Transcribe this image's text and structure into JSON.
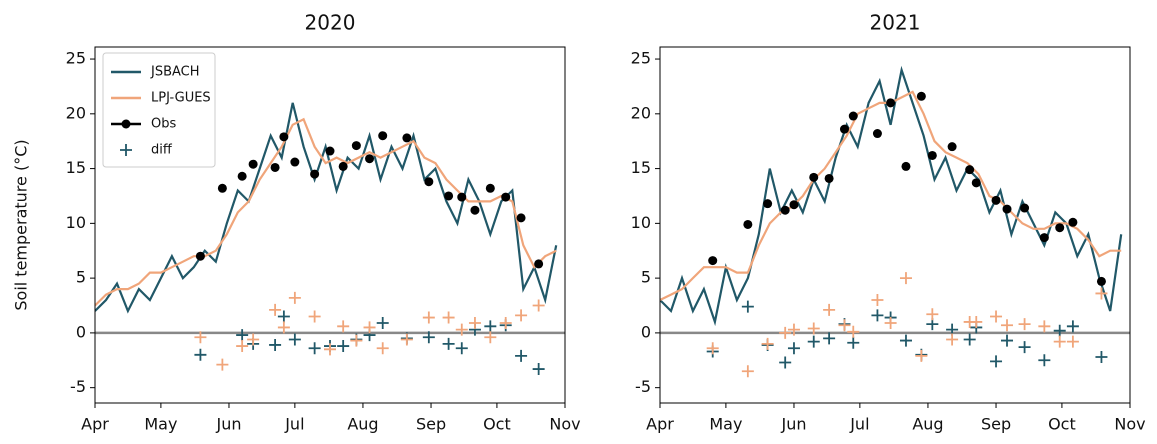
{
  "chart_data": [
    {
      "type": "line",
      "title": "2020",
      "ylabel": "Soil temperature (°C)",
      "xlim": [
        0,
        214
      ],
      "xticks": [
        {
          "value": 0,
          "label": "Apr"
        },
        {
          "value": 30,
          "label": "May"
        },
        {
          "value": 61,
          "label": "Jun"
        },
        {
          "value": 91,
          "label": "Jul"
        },
        {
          "value": 122,
          "label": "Aug"
        },
        {
          "value": 153,
          "label": "Sep"
        },
        {
          "value": 183,
          "label": "Oct"
        },
        {
          "value": 214,
          "label": "Nov"
        }
      ],
      "ylim": [
        -6.4,
        26.1
      ],
      "yticks": [
        -5,
        0,
        5,
        10,
        15,
        20,
        25
      ],
      "hline": 0,
      "hline_color": "#888888",
      "legend": "upper left",
      "series": [
        {
          "name": "JSBACH",
          "color": "#215868",
          "marker": "line",
          "x": [
            0,
            5,
            10,
            15,
            20,
            25,
            30,
            35,
            40,
            45,
            50,
            55,
            60,
            65,
            70,
            75,
            80,
            85,
            90,
            95,
            100,
            105,
            110,
            115,
            120,
            125,
            130,
            135,
            140,
            145,
            150,
            155,
            160,
            165,
            170,
            175,
            180,
            185,
            190,
            195,
            200,
            205,
            210
          ],
          "values": [
            2,
            3,
            4.5,
            2,
            4,
            3,
            5,
            7,
            5,
            6,
            7.5,
            6.5,
            10,
            13,
            12,
            15,
            18,
            16,
            21,
            17,
            14,
            17,
            13,
            16,
            15,
            18,
            14,
            17,
            15,
            18,
            14,
            15,
            12,
            10,
            14,
            12,
            9,
            12,
            13,
            4,
            6,
            3,
            8
          ]
        },
        {
          "name": "LPJ-GUES",
          "color": "#f0a57a",
          "marker": "line",
          "x": [
            0,
            5,
            10,
            15,
            20,
            25,
            30,
            35,
            40,
            45,
            50,
            55,
            60,
            65,
            70,
            75,
            80,
            85,
            90,
            95,
            100,
            105,
            110,
            115,
            120,
            125,
            130,
            135,
            140,
            145,
            150,
            155,
            160,
            165,
            170,
            175,
            180,
            185,
            190,
            195,
            200,
            205,
            210
          ],
          "values": [
            2.5,
            3.5,
            4,
            4,
            4.5,
            5.5,
            5.5,
            6,
            6.5,
            7,
            7,
            7.5,
            9,
            11,
            12,
            14,
            15.5,
            17,
            19,
            19.5,
            17,
            15.5,
            16,
            15.5,
            16,
            16.5,
            16,
            16.5,
            17,
            17.5,
            16,
            15.5,
            14,
            13,
            12,
            12,
            12,
            12.5,
            12,
            8,
            6,
            7,
            7.5
          ]
        },
        {
          "name": "Obs",
          "color": "#000000",
          "marker": "dot",
          "x": [
            48,
            58,
            67,
            72,
            82,
            86,
            91,
            100,
            107,
            113,
            119,
            125,
            131,
            142,
            152,
            161,
            167,
            173,
            180,
            187,
            194,
            202
          ],
          "values": [
            7.0,
            13.2,
            14.3,
            15.4,
            15.1,
            17.9,
            15.6,
            14.5,
            16.6,
            15.2,
            17.1,
            15.9,
            18.0,
            17.8,
            13.8,
            12.5,
            12.4,
            11.2,
            13.2,
            12.4,
            10.5,
            6.3
          ]
        },
        {
          "name": "diff",
          "color": "#215868",
          "marker": "plus",
          "x": [
            48,
            67,
            72,
            82,
            86,
            91,
            100,
            107,
            113,
            119,
            125,
            131,
            142,
            152,
            161,
            167,
            173,
            180,
            187,
            194,
            202
          ],
          "values": [
            -2,
            -0.2,
            -1,
            -1.1,
            1.5,
            -0.6,
            -1.4,
            -1.2,
            -1.2,
            -0.6,
            -0.2,
            0.9,
            -0.5,
            -0.4,
            -1,
            -1.4,
            0.3,
            0.6,
            0.7,
            -2.1,
            -3.3
          ]
        },
        {
          "color": "#f0a57a",
          "marker": "plus",
          "x": [
            48,
            58,
            67,
            72,
            82,
            86,
            91,
            100,
            107,
            113,
            119,
            125,
            131,
            142,
            152,
            161,
            167,
            173,
            180,
            187,
            194,
            202
          ],
          "values": [
            -0.4,
            -2.9,
            -1.2,
            -0.6,
            2.1,
            0.5,
            3.2,
            1.5,
            -1.5,
            0.6,
            -0.7,
            0.5,
            -1.4,
            -0.6,
            1.4,
            1.4,
            0.3,
            0.9,
            -0.4,
            0.9,
            1.6,
            2.5
          ]
        }
      ]
    },
    {
      "type": "line",
      "title": "2021",
      "xlim": [
        0,
        214
      ],
      "xticks": [
        {
          "value": 0,
          "label": "Apr"
        },
        {
          "value": 30,
          "label": "May"
        },
        {
          "value": 61,
          "label": "Jun"
        },
        {
          "value": 91,
          "label": "Jul"
        },
        {
          "value": 122,
          "label": "Aug"
        },
        {
          "value": 153,
          "label": "Sep"
        },
        {
          "value": 183,
          "label": "Oct"
        },
        {
          "value": 214,
          "label": "Nov"
        }
      ],
      "ylim": [
        -6.4,
        26.1
      ],
      "yticks": [
        -5,
        0,
        5,
        10,
        15,
        20,
        25
      ],
      "hline": 0,
      "hline_color": "#888888",
      "series": [
        {
          "name": "JSBACH",
          "color": "#215868",
          "marker": "line",
          "x": [
            0,
            5,
            10,
            15,
            20,
            25,
            30,
            35,
            40,
            45,
            50,
            55,
            60,
            65,
            70,
            75,
            80,
            85,
            90,
            95,
            100,
            105,
            110,
            115,
            120,
            125,
            130,
            135,
            140,
            145,
            150,
            155,
            160,
            165,
            170,
            175,
            180,
            185,
            190,
            195,
            200,
            205,
            210
          ],
          "values": [
            3,
            2,
            5,
            2,
            4,
            1,
            6,
            3,
            5,
            9,
            15,
            11,
            13,
            11,
            14,
            12,
            16,
            19,
            17,
            21,
            23,
            19,
            24,
            21,
            18,
            14,
            16,
            13,
            15,
            14,
            11,
            13,
            9,
            12,
            10,
            8,
            11,
            10,
            7,
            9,
            5,
            2,
            9
          ]
        },
        {
          "name": "LPJ-GUES",
          "color": "#f0a57a",
          "marker": "line",
          "x": [
            0,
            5,
            10,
            15,
            20,
            25,
            30,
            35,
            40,
            45,
            50,
            55,
            60,
            65,
            70,
            75,
            80,
            85,
            90,
            95,
            100,
            105,
            110,
            115,
            120,
            125,
            130,
            135,
            140,
            145,
            150,
            155,
            160,
            165,
            170,
            175,
            180,
            185,
            190,
            195,
            200,
            205,
            210
          ],
          "values": [
            3,
            3.5,
            4,
            5,
            6,
            6,
            6,
            5.5,
            5.5,
            8,
            10,
            11,
            11.5,
            12.5,
            14,
            15,
            16.5,
            18,
            20,
            20.5,
            21,
            21,
            21.5,
            22,
            20,
            17.5,
            16.5,
            16,
            15.5,
            14.5,
            12.5,
            12,
            11,
            10,
            9.5,
            9.5,
            10,
            10,
            9.5,
            8.5,
            7,
            7.5,
            7.5
          ]
        },
        {
          "name": "Obs",
          "color": "#000000",
          "marker": "dot",
          "x": [
            24,
            40,
            49,
            57,
            61,
            70,
            77,
            84,
            88,
            99,
            105,
            112,
            119,
            124,
            133,
            141,
            144,
            153,
            158,
            166,
            175,
            182,
            188,
            201
          ],
          "values": [
            6.6,
            9.9,
            11.8,
            11.2,
            11.7,
            14.2,
            14.1,
            18.6,
            19.8,
            18.2,
            21.0,
            15.2,
            21.6,
            16.2,
            17.0,
            14.9,
            13.7,
            12.1,
            11.3,
            11.4,
            8.7,
            9.6,
            10.1,
            4.7
          ]
        },
        {
          "name": "diff",
          "color": "#215868",
          "marker": "plus",
          "x": [
            24,
            40,
            49,
            57,
            61,
            70,
            77,
            84,
            88,
            99,
            105,
            112,
            119,
            124,
            133,
            141,
            144,
            153,
            158,
            166,
            175,
            182,
            188,
            201
          ],
          "values": [
            -1.7,
            2.4,
            -1.1,
            -2.7,
            -1.4,
            -0.8,
            -0.5,
            0.8,
            -0.9,
            1.6,
            1.4,
            -0.7,
            -2,
            0.8,
            0.3,
            -0.6,
            0.5,
            -2.6,
            -0.7,
            -1.3,
            -2.5,
            0.2,
            0.6,
            -2.2
          ]
        },
        {
          "color": "#f0a57a",
          "marker": "plus",
          "x": [
            24,
            40,
            49,
            57,
            61,
            70,
            77,
            84,
            88,
            99,
            105,
            112,
            119,
            124,
            133,
            141,
            144,
            153,
            158,
            166,
            175,
            182,
            188,
            201
          ],
          "values": [
            -1.4,
            -3.5,
            -1,
            0,
            0.3,
            0.4,
            2.1,
            0.7,
            0.1,
            3.0,
            0.9,
            5.0,
            -2.1,
            1.7,
            -0.6,
            1.0,
            1.0,
            1.5,
            0.7,
            0.8,
            0.6,
            -0.8,
            -0.8,
            3.6
          ]
        }
      ]
    }
  ]
}
